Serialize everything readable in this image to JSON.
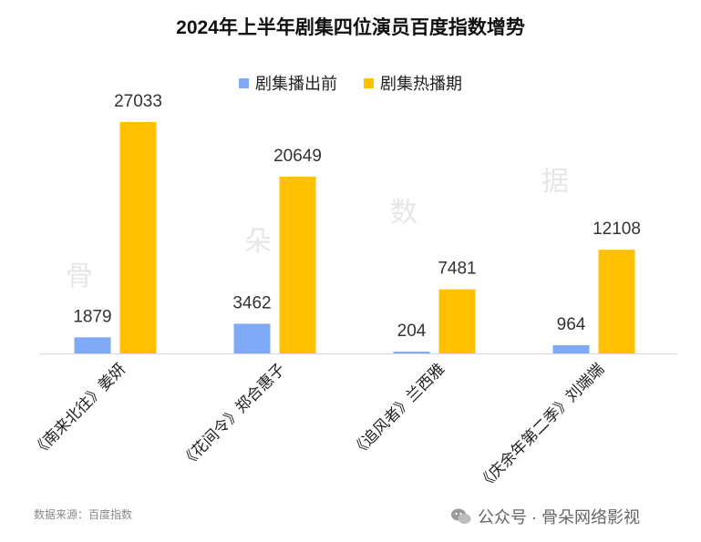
{
  "title": "2024年上半年剧集四位演员百度指数增势",
  "legend": [
    {
      "label": "剧集播出前",
      "color": "#7fa8f5"
    },
    {
      "label": "剧集热播期",
      "color": "#ffc000"
    }
  ],
  "watermark": [
    "骨",
    "朵",
    "数",
    "据"
  ],
  "source": "数据来源：百度指数",
  "credit": "公众号 · 骨朵网络影视",
  "chart_data": {
    "type": "bar",
    "categories": [
      "《南来北往》姜妍",
      "《花间令》郑合惠子",
      "《追风者》兰西雅",
      "《庆余年第二季》刘端端"
    ],
    "series": [
      {
        "name": "剧集播出前",
        "values": [
          1879,
          3462,
          204,
          964
        ],
        "color": "#7fa8f5"
      },
      {
        "name": "剧集热播期",
        "values": [
          27033,
          20649,
          7481,
          12108
        ],
        "color": "#ffc000"
      }
    ],
    "ylim": [
      0,
      30000
    ],
    "grid": false,
    "legend_position": "top"
  }
}
